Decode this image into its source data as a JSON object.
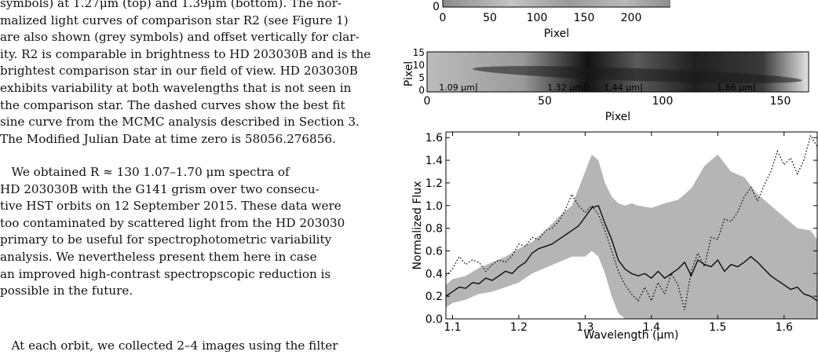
{
  "caption_lines": [
    "symbols) at 1.27μm (top) and 1.39μm (bottom). The nor-",
    "malized light curves of comparison star R2 (see Figure 1)",
    "are also shown (grey symbols) and offset vertically for clar-",
    "ity. R2 is comparable in brightness to HD 203030B and is the",
    "brightest comparison star in our field of view. HD 203030B",
    "exhibits variability at both wavelengths that is not seen in",
    "the comparison star. The dashed curves show the best fit",
    "sine curve from the MCMC analysis described in Section 3.",
    "The Modified Julian Date at time zero is 58056.276856."
  ],
  "body_para_lines": [
    "   We obtained R ≈ 130 1.07–1.70 μm spectra of",
    "HD 203030B with the G141 grism over two consecu-",
    "tive HST orbits on 12 September 2015. These data were",
    "too contaminated by scattered light from the HD 203030",
    "primary to be useful for spectrophotometric variability",
    "analysis. We nevertheless present them here in case",
    "an improved high-contrast spectropscopic reduction is",
    "possible in the future."
  ],
  "body_para2_start": "   At each orbit, we collected 2–4 images using the filter",
  "chart_data": [
    {
      "type": "heatmap",
      "xlabel": "Pixel",
      "x_ticks": [
        "0",
        "50",
        "100",
        "150",
        "200"
      ],
      "y_ticks": [
        "0"
      ]
    },
    {
      "type": "heatmap",
      "xlabel": "Pixel",
      "ylabel": "Pixel",
      "x_ticks": [
        "0",
        "50",
        "100",
        "150"
      ],
      "y_ticks": [
        "0",
        "5",
        "10",
        "15"
      ],
      "annotations": [
        "1.09 μm",
        "1.32 μm",
        "1.44 μm",
        "1.66 μm"
      ],
      "annotation_pixels": [
        21,
        67,
        91,
        139
      ]
    },
    {
      "type": "line",
      "xlabel": "Wavelength (μm)",
      "ylabel": "Normalized Flux",
      "xlim": [
        1.09,
        1.65
      ],
      "ylim": [
        0.0,
        1.65
      ],
      "x_ticks": [
        "1.1",
        "1.2",
        "1.3",
        "1.4",
        "1.5",
        "1.6"
      ],
      "y_ticks": [
        "0.0",
        "0.2",
        "0.4",
        "0.6",
        "0.8",
        "1.0",
        "1.2",
        "1.4",
        "1.6"
      ],
      "series": [
        {
          "style": "solid",
          "x": [
            1.09,
            1.1,
            1.11,
            1.12,
            1.13,
            1.14,
            1.15,
            1.16,
            1.17,
            1.18,
            1.19,
            1.2,
            1.21,
            1.22,
            1.23,
            1.24,
            1.25,
            1.26,
            1.27,
            1.28,
            1.29,
            1.3,
            1.31,
            1.32,
            1.33,
            1.34,
            1.35,
            1.36,
            1.37,
            1.38,
            1.39,
            1.4,
            1.41,
            1.42,
            1.43,
            1.44,
            1.45,
            1.46,
            1.47,
            1.48,
            1.49,
            1.5,
            1.51,
            1.52,
            1.53,
            1.54,
            1.55,
            1.56,
            1.57,
            1.58,
            1.59,
            1.6,
            1.61,
            1.62,
            1.63,
            1.64,
            1.65
          ],
          "y": [
            0.2,
            0.24,
            0.28,
            0.27,
            0.32,
            0.31,
            0.36,
            0.34,
            0.38,
            0.42,
            0.4,
            0.46,
            0.5,
            0.58,
            0.62,
            0.64,
            0.66,
            0.7,
            0.74,
            0.78,
            0.82,
            0.9,
            0.98,
            1.0,
            0.84,
            0.7,
            0.52,
            0.44,
            0.4,
            0.38,
            0.4,
            0.36,
            0.42,
            0.36,
            0.4,
            0.44,
            0.5,
            0.38,
            0.52,
            0.48,
            0.46,
            0.52,
            0.42,
            0.48,
            0.46,
            0.5,
            0.55,
            0.5,
            0.44,
            0.38,
            0.34,
            0.3,
            0.26,
            0.28,
            0.22,
            0.2,
            0.16
          ]
        },
        {
          "style": "dotted",
          "x": [
            1.09,
            1.1,
            1.11,
            1.12,
            1.13,
            1.14,
            1.15,
            1.16,
            1.17,
            1.18,
            1.19,
            1.2,
            1.21,
            1.22,
            1.23,
            1.24,
            1.25,
            1.26,
            1.27,
            1.28,
            1.29,
            1.3,
            1.31,
            1.32,
            1.33,
            1.34,
            1.35,
            1.36,
            1.37,
            1.38,
            1.39,
            1.4,
            1.41,
            1.42,
            1.43,
            1.44,
            1.45,
            1.46,
            1.47,
            1.48,
            1.49,
            1.5,
            1.51,
            1.52,
            1.53,
            1.54,
            1.55,
            1.56,
            1.57,
            1.58,
            1.59,
            1.6,
            1.61,
            1.62,
            1.63,
            1.64,
            1.65
          ],
          "y": [
            0.38,
            0.44,
            0.55,
            0.48,
            0.52,
            0.5,
            0.42,
            0.48,
            0.52,
            0.5,
            0.56,
            0.66,
            0.64,
            0.72,
            0.7,
            0.78,
            0.8,
            0.86,
            0.96,
            1.1,
            1.0,
            0.94,
            1.0,
            0.92,
            0.78,
            0.6,
            0.42,
            0.3,
            0.22,
            0.16,
            0.28,
            0.16,
            0.32,
            0.22,
            0.4,
            0.3,
            0.08,
            0.42,
            0.58,
            0.46,
            0.72,
            0.7,
            0.88,
            0.86,
            0.94,
            1.08,
            1.16,
            1.04,
            1.18,
            1.3,
            1.48,
            1.36,
            1.42,
            1.28,
            1.4,
            1.62,
            1.52
          ]
        },
        {
          "style": "band",
          "x": [
            1.09,
            1.1,
            1.12,
            1.14,
            1.16,
            1.18,
            1.2,
            1.22,
            1.24,
            1.26,
            1.28,
            1.3,
            1.31,
            1.32,
            1.33,
            1.34,
            1.35,
            1.36,
            1.37,
            1.38,
            1.4,
            1.42,
            1.44,
            1.46,
            1.48,
            1.5,
            1.52,
            1.54,
            1.56,
            1.58,
            1.6,
            1.62,
            1.64,
            1.65
          ],
          "upper": [
            0.3,
            0.35,
            0.38,
            0.45,
            0.5,
            0.55,
            0.62,
            0.68,
            0.78,
            0.9,
            1.0,
            1.3,
            1.45,
            1.4,
            1.2,
            1.08,
            1.02,
            1.0,
            1.02,
            1.0,
            0.98,
            1.02,
            1.05,
            1.15,
            1.35,
            1.45,
            1.3,
            1.25,
            1.1,
            1.0,
            0.9,
            0.8,
            0.78,
            0.7
          ],
          "lower": [
            0.1,
            0.14,
            0.17,
            0.22,
            0.24,
            0.28,
            0.32,
            0.4,
            0.45,
            0.5,
            0.55,
            0.55,
            0.6,
            0.55,
            0.4,
            0.2,
            0.05,
            0.0,
            0.0,
            0.0,
            0.0,
            0.0,
            0.0,
            0.0,
            0.0,
            0.0,
            0.0,
            0.0,
            0.0,
            0.0,
            0.0,
            0.0,
            0.0,
            0.0
          ]
        }
      ]
    }
  ]
}
